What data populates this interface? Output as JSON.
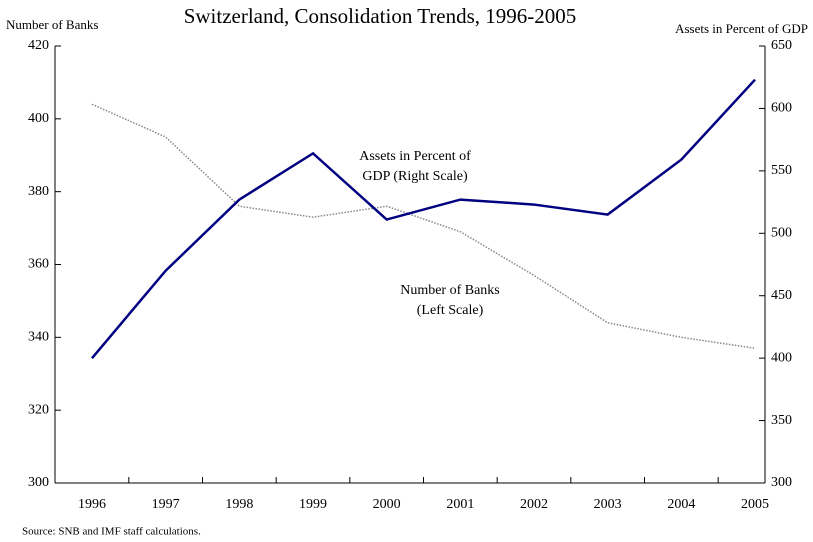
{
  "chart_data": {
    "type": "line",
    "title": "Switzerland, Consolidation Trends, 1996-2005",
    "ylabel": "Number of Banks",
    "y2label": "Assets in Percent of GDP",
    "categories": [
      "1996",
      "1997",
      "1998",
      "1999",
      "2000",
      "2001",
      "2002",
      "2003",
      "2004",
      "2005"
    ],
    "series": [
      {
        "name": "Number of Banks",
        "color": "#888888",
        "dashed": true,
        "values": [
          404,
          395,
          376,
          373,
          376,
          369,
          357,
          344,
          340,
          337
        ]
      },
      {
        "name": "Assets in Percent of GDP",
        "color": "#000080",
        "axis": "y2",
        "values": [
          400,
          470,
          527,
          564,
          511,
          527,
          523,
          515,
          559,
          623
        ]
      }
    ],
    "ylim": [
      300,
      420
    ],
    "yticks": [
      300,
      320,
      340,
      360,
      380,
      400,
      420
    ],
    "y2lim": [
      300,
      650
    ],
    "y2ticks": [
      300,
      350,
      400,
      450,
      500,
      550,
      600,
      650
    ],
    "annotations": [
      {
        "lines": [
          "Assets in Percent of",
          "GDP (Right Scale)"
        ]
      },
      {
        "lines": [
          "Number of Banks",
          "(Left Scale)"
        ]
      }
    ],
    "source": "Source: SNB and IMF staff calculations."
  }
}
